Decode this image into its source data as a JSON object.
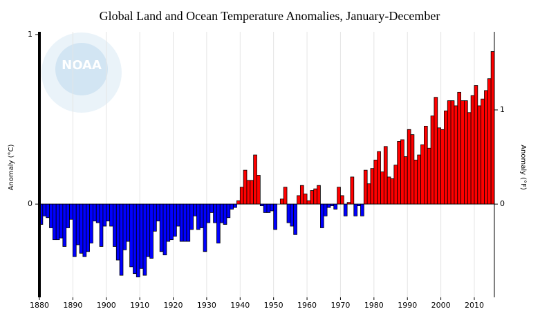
{
  "chart_data": {
    "type": "bar",
    "title": "Global Land and Ocean Temperature Anomalies, January-December",
    "ylabel": "Anomaly (°C)",
    "y2label": "Anomaly (°F)",
    "watermark": "NOAA",
    "x": [
      1880,
      1881,
      1882,
      1883,
      1884,
      1885,
      1886,
      1887,
      1888,
      1889,
      1890,
      1891,
      1892,
      1893,
      1894,
      1895,
      1896,
      1897,
      1898,
      1899,
      1900,
      1901,
      1902,
      1903,
      1904,
      1905,
      1906,
      1907,
      1908,
      1909,
      1910,
      1911,
      1912,
      1913,
      1914,
      1915,
      1916,
      1917,
      1918,
      1919,
      1920,
      1921,
      1922,
      1923,
      1924,
      1925,
      1926,
      1927,
      1928,
      1929,
      1930,
      1931,
      1932,
      1933,
      1934,
      1935,
      1936,
      1937,
      1938,
      1939,
      1940,
      1941,
      1942,
      1943,
      1944,
      1945,
      1946,
      1947,
      1948,
      1949,
      1950,
      1951,
      1952,
      1953,
      1954,
      1955,
      1956,
      1957,
      1958,
      1959,
      1960,
      1961,
      1962,
      1963,
      1964,
      1965,
      1966,
      1967,
      1968,
      1969,
      1970,
      1971,
      1972,
      1973,
      1974,
      1975,
      1976,
      1977,
      1978,
      1979,
      1980,
      1981,
      1982,
      1983,
      1984,
      1985,
      1986,
      1987,
      1988,
      1989,
      1990,
      1991,
      1992,
      1993,
      1994,
      1995,
      1996,
      1997,
      1998,
      1999,
      2000,
      2001,
      2002,
      2003,
      2004,
      2005,
      2006,
      2007,
      2008,
      2009,
      2010,
      2011,
      2012,
      2013,
      2014,
      2015
    ],
    "values": [
      -0.12,
      -0.07,
      -0.08,
      -0.14,
      -0.21,
      -0.21,
      -0.2,
      -0.25,
      -0.14,
      -0.09,
      -0.31,
      -0.24,
      -0.29,
      -0.31,
      -0.28,
      -0.23,
      -0.1,
      -0.11,
      -0.25,
      -0.13,
      -0.1,
      -0.13,
      -0.25,
      -0.33,
      -0.42,
      -0.27,
      -0.22,
      -0.37,
      -0.41,
      -0.43,
      -0.38,
      -0.42,
      -0.31,
      -0.32,
      -0.16,
      -0.1,
      -0.28,
      -0.3,
      -0.22,
      -0.21,
      -0.19,
      -0.13,
      -0.22,
      -0.22,
      -0.22,
      -0.15,
      -0.07,
      -0.15,
      -0.14,
      -0.28,
      -0.11,
      -0.05,
      -0.11,
      -0.23,
      -0.11,
      -0.12,
      -0.08,
      -0.03,
      -0.02,
      0.02,
      0.1,
      0.2,
      0.14,
      0.14,
      0.29,
      0.17,
      -0.01,
      -0.05,
      -0.05,
      -0.04,
      -0.15,
      0.0,
      0.03,
      0.1,
      -0.11,
      -0.13,
      -0.18,
      0.05,
      0.11,
      0.06,
      0.02,
      0.08,
      0.09,
      0.11,
      -0.14,
      -0.07,
      -0.02,
      -0.01,
      -0.03,
      0.1,
      0.05,
      -0.07,
      0.01,
      0.16,
      -0.07,
      -0.01,
      -0.07,
      0.2,
      0.12,
      0.21,
      0.26,
      0.31,
      0.19,
      0.34,
      0.16,
      0.15,
      0.23,
      0.37,
      0.38,
      0.28,
      0.44,
      0.41,
      0.26,
      0.29,
      0.35,
      0.46,
      0.33,
      0.52,
      0.63,
      0.45,
      0.44,
      0.55,
      0.61,
      0.61,
      0.58,
      0.66,
      0.61,
      0.61,
      0.54,
      0.64,
      0.7,
      0.58,
      0.62,
      0.67,
      0.74,
      0.9
    ],
    "positive_color": "#ff0000",
    "negative_color": "#0000ff",
    "xlim": [
      1880,
      2016
    ],
    "xticks": [
      1880,
      1890,
      1900,
      1910,
      1920,
      1930,
      1940,
      1950,
      1960,
      1970,
      1980,
      1990,
      2000,
      2010
    ],
    "ylim": [
      -0.55,
      1
    ],
    "yticks": [
      0,
      1
    ],
    "y2lim": [
      -0.99,
      1.8
    ],
    "y2ticks": [
      0,
      1
    ],
    "grid": true
  }
}
